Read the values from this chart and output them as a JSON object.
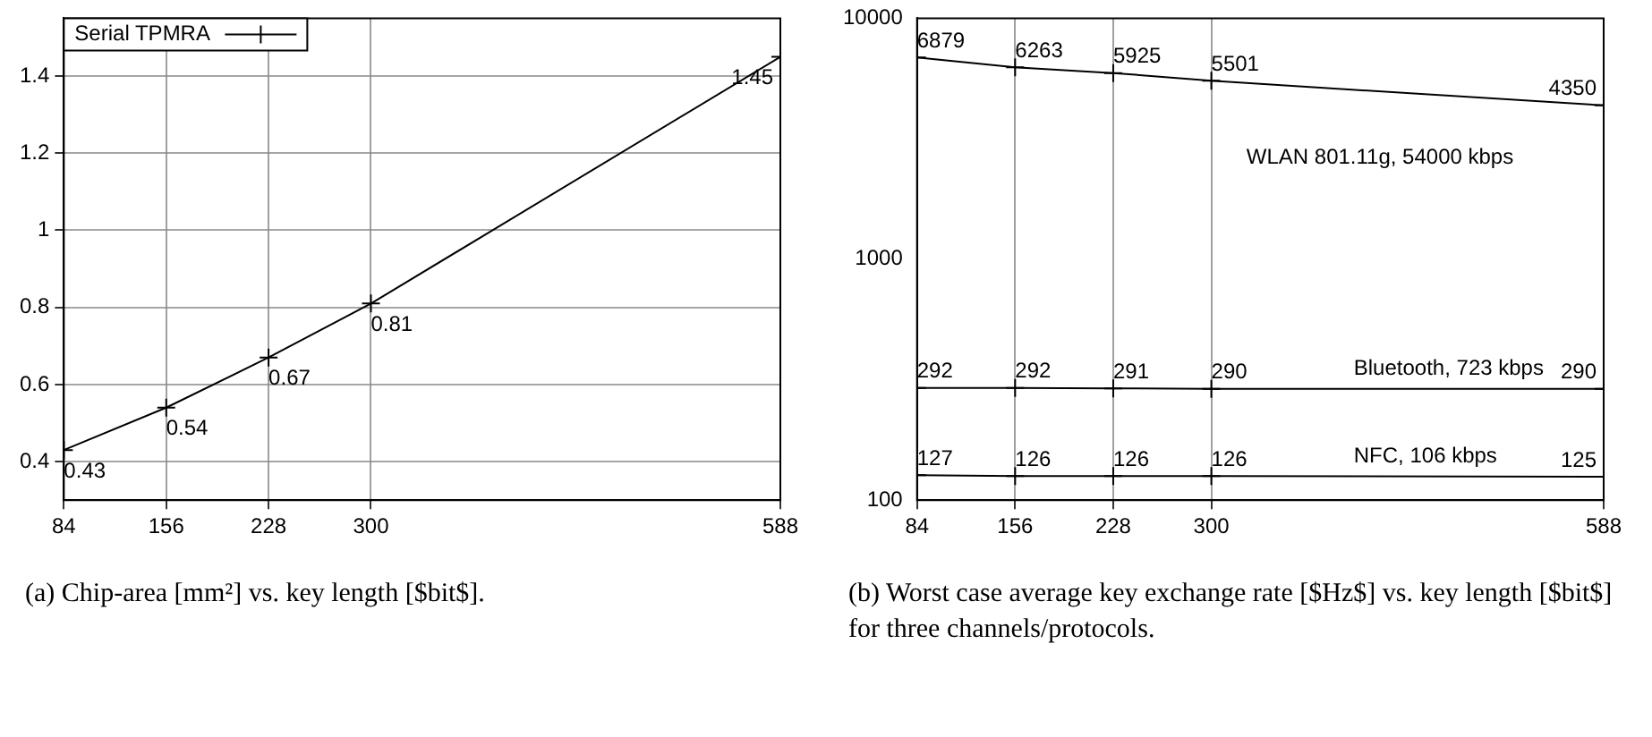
{
  "chart_data": [
    {
      "type": "line",
      "x": [
        84,
        156,
        228,
        300,
        588
      ],
      "series": [
        {
          "name": "Serial TPMRA",
          "color": "#000000",
          "values": [
            0.43,
            0.54,
            0.67,
            0.81,
            1.45
          ]
        }
      ],
      "xlim": [
        84,
        588
      ],
      "xticks": [
        84,
        156,
        228,
        300,
        588
      ],
      "ylim": [
        0.3,
        1.55
      ],
      "yticks": [
        0.4,
        0.6,
        0.8,
        1,
        1.2,
        1.4
      ],
      "grid": true,
      "legend": "top left",
      "marker": "cross",
      "line_style": "solid",
      "data_labels": true,
      "annotations": [
        "(a) Chip-area [mm²] vs. key length [$bit$]."
      ]
    },
    {
      "type": "line",
      "x": [
        84,
        156,
        228,
        300,
        588
      ],
      "series": [
        {
          "name": "WLAN 801.11g, 54000 kbps",
          "color": "#000000",
          "values": [
            6879,
            6263,
            5925,
            5501,
            4350
          ]
        },
        {
          "name": "Bluetooth, 723 kbps",
          "color": "#000000",
          "values": [
            292,
            292,
            291,
            290,
            290
          ]
        },
        {
          "name": "NFC, 106 kbps",
          "color": "#000000",
          "values": [
            127,
            126,
            126,
            126,
            125
          ]
        }
      ],
      "xlim": [
        84,
        588
      ],
      "xticks": [
        84,
        156,
        228,
        300,
        588
      ],
      "ylim": [
        100,
        10000
      ],
      "yticks": [
        100,
        1000,
        10000
      ],
      "log": "y",
      "grid": "x",
      "legend": false,
      "marker": "cross",
      "line_style": "solid",
      "data_labels": true,
      "annotations": [
        "(b) Worst case average key exchange rate [$Hz$] vs. key length [$bit$] for three channels/protocols."
      ]
    }
  ]
}
